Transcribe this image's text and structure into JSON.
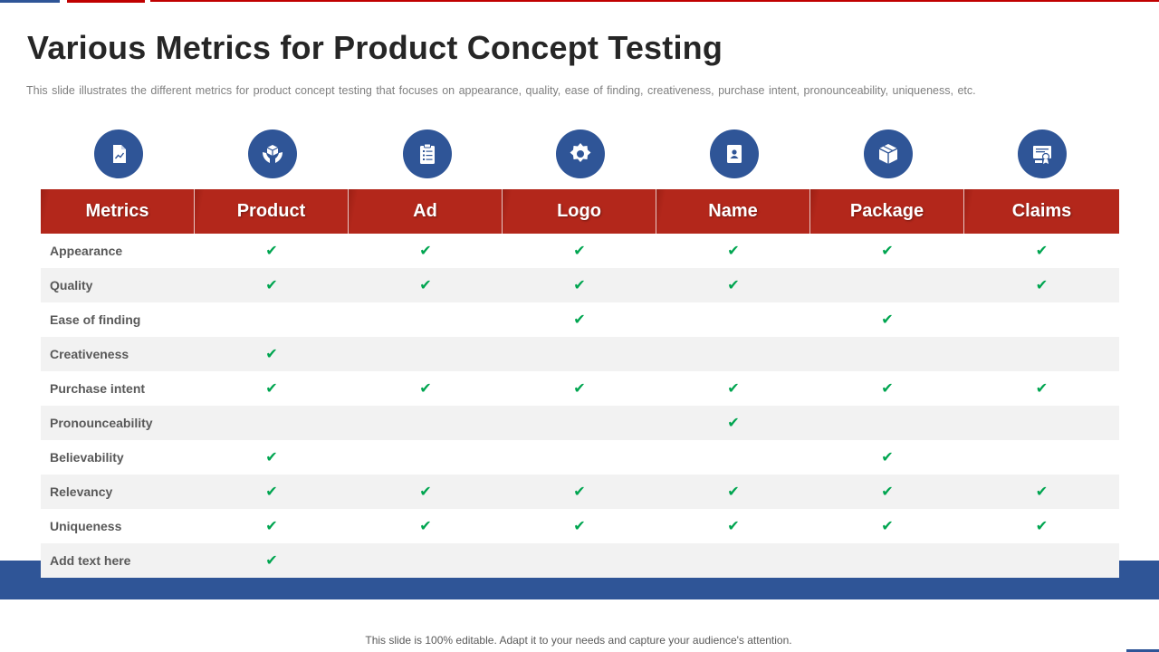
{
  "slide": {
    "title": "Various Metrics for Product Concept Testing",
    "subtitle": "This slide illustrates the different  metrics for product  concept testing that focuses on appearance,  quality,  ease of finding,  creativeness,  purchase intent,  pronounceability,  uniqueness,  etc.",
    "footer": "This slide is 100% editable. Adapt it to your needs and capture your audience's attention."
  },
  "colors": {
    "header_red": "#b02418",
    "accent_blue": "#2f5597",
    "check_green": "#00a550",
    "row_alt": "#f2f2f2"
  },
  "icons": [
    {
      "column": "Metrics",
      "name": "document-chart-icon"
    },
    {
      "column": "Product",
      "name": "hands-box-icon"
    },
    {
      "column": "Ad",
      "name": "clipboard-list-icon"
    },
    {
      "column": "Logo",
      "name": "gear-badge-icon"
    },
    {
      "column": "Name",
      "name": "contact-card-icon"
    },
    {
      "column": "Package",
      "name": "package-box-icon"
    },
    {
      "column": "Claims",
      "name": "certificate-icon"
    }
  ],
  "table": {
    "headers": [
      "Metrics",
      "Product",
      "Ad",
      "Logo",
      "Name",
      "Package",
      "Claims"
    ],
    "check_symbol": "✔",
    "rows": [
      {
        "label": "Appearance",
        "checks": [
          true,
          true,
          true,
          true,
          true,
          true
        ]
      },
      {
        "label": "Quality",
        "checks": [
          true,
          true,
          true,
          true,
          false,
          true
        ]
      },
      {
        "label": "Ease of finding",
        "checks": [
          false,
          false,
          true,
          false,
          true,
          false
        ]
      },
      {
        "label": "Creativeness",
        "checks": [
          true,
          false,
          false,
          false,
          false,
          false
        ]
      },
      {
        "label": "Purchase intent",
        "checks": [
          true,
          true,
          true,
          true,
          true,
          true
        ]
      },
      {
        "label": "Pronounceability",
        "checks": [
          false,
          false,
          false,
          true,
          false,
          false
        ]
      },
      {
        "label": "Believability",
        "checks": [
          true,
          false,
          false,
          false,
          true,
          false
        ]
      },
      {
        "label": "Relevancy",
        "checks": [
          true,
          true,
          true,
          true,
          true,
          true
        ]
      },
      {
        "label": "Uniqueness",
        "checks": [
          true,
          true,
          true,
          true,
          true,
          true
        ]
      },
      {
        "label": "Add text here",
        "checks": [
          true,
          false,
          false,
          false,
          false,
          false
        ]
      }
    ]
  }
}
